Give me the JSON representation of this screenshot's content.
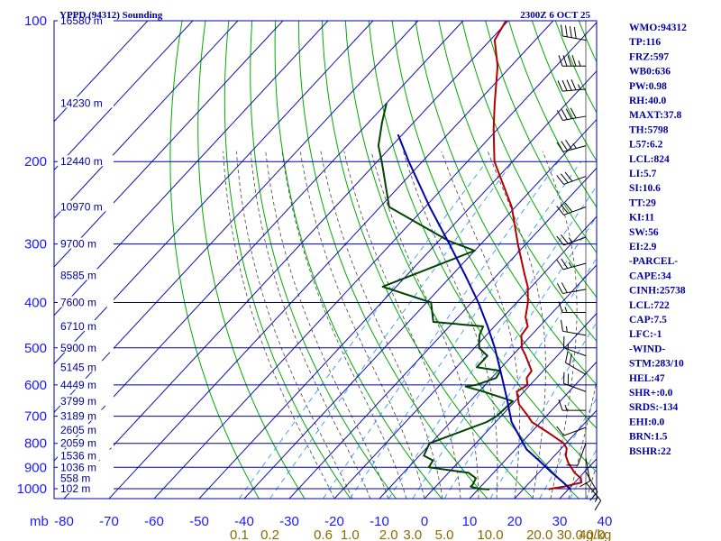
{
  "chart_data": {
    "type": "line",
    "title": "YPPD (94312) Sounding",
    "time_label": "2300Z  6 OCT 25",
    "pressure_axis_unit": "mb",
    "mixing_ratio_unit": "g/kg",
    "pressure_levels": [
      100,
      200,
      300,
      400,
      500,
      600,
      700,
      800,
      900,
      1000
    ],
    "temperature_ticks": [
      -80,
      -70,
      -60,
      -50,
      -40,
      -30,
      -20,
      -10,
      0,
      10,
      20,
      30,
      40
    ],
    "temperature_tick_labels": [
      "-80",
      "-70",
      "-60",
      "-50",
      "-40",
      "-30",
      "-20",
      "-10",
      "0",
      "10",
      "20",
      "30",
      "40"
    ],
    "mixing_ratio_labels": [
      "0.1",
      "0.2",
      "0.6",
      "1.0",
      "2.0",
      "3.0",
      "5.0",
      "10.0",
      "20.0",
      "30.0",
      "40.0"
    ],
    "height_labels": [
      {
        "p": 100,
        "label": "16580 m"
      },
      {
        "p": 150,
        "label": "14230 m"
      },
      {
        "p": 200,
        "label": "12440 m"
      },
      {
        "p": 250,
        "label": "10970 m"
      },
      {
        "p": 300,
        "label": "9700 m"
      },
      {
        "p": 350,
        "label": "8585 m"
      },
      {
        "p": 400,
        "label": "7600 m"
      },
      {
        "p": 450,
        "label": "6710 m"
      },
      {
        "p": 500,
        "label": "5900 m"
      },
      {
        "p": 550,
        "label": "5145 m"
      },
      {
        "p": 600,
        "label": "4449 m"
      },
      {
        "p": 650,
        "label": "3799 m"
      },
      {
        "p": 700,
        "label": "3189 m"
      },
      {
        "p": 750,
        "label": "2605 m"
      },
      {
        "p": 800,
        "label": "2059 m"
      },
      {
        "p": 850,
        "label": "1536 m"
      },
      {
        "p": 900,
        "label": "1036 m"
      },
      {
        "p": 950,
        "label": "558 m"
      },
      {
        "p": 1000,
        "label": "102 m"
      }
    ],
    "series": [
      {
        "name": "Temperature",
        "color": "#b00000",
        "points": [
          {
            "p": 1003,
            "t": 25.6
          },
          {
            "p": 1000,
            "t": 26.0
          },
          {
            "p": 990,
            "t": 28.5
          },
          {
            "p": 970,
            "t": 31.5
          },
          {
            "p": 950,
            "t": 30.5
          },
          {
            "p": 925,
            "t": 28.0
          },
          {
            "p": 880,
            "t": 24.5
          },
          {
            "p": 850,
            "t": 22.5
          },
          {
            "p": 820,
            "t": 21.2
          },
          {
            "p": 800,
            "t": 19.5
          },
          {
            "p": 760,
            "t": 14.0
          },
          {
            "p": 720,
            "t": 8.0
          },
          {
            "p": 700,
            "t": 6.0
          },
          {
            "p": 660,
            "t": 1.5
          },
          {
            "p": 620,
            "t": -1.6
          },
          {
            "p": 600,
            "t": -0.6
          },
          {
            "p": 580,
            "t": -2.2
          },
          {
            "p": 560,
            "t": -2.6
          },
          {
            "p": 520,
            "t": -7.0
          },
          {
            "p": 500,
            "t": -9.5
          },
          {
            "p": 470,
            "t": -12.2
          },
          {
            "p": 450,
            "t": -12.6
          },
          {
            "p": 430,
            "t": -15.0
          },
          {
            "p": 400,
            "t": -17.5
          },
          {
            "p": 370,
            "t": -20.8
          },
          {
            "p": 350,
            "t": -23.8
          },
          {
            "p": 300,
            "t": -31.8
          },
          {
            "p": 250,
            "t": -40.8
          },
          {
            "p": 200,
            "t": -54.0
          },
          {
            "p": 170,
            "t": -61.0
          },
          {
            "p": 150,
            "t": -66.0
          },
          {
            "p": 125,
            "t": -73.0
          },
          {
            "p": 110,
            "t": -79.0
          },
          {
            "p": 100,
            "t": -80.5
          }
        ]
      },
      {
        "name": "Dewpoint",
        "color": "#004400",
        "points": [
          {
            "p": 1003,
            "t": 12.5
          },
          {
            "p": 1000,
            "t": 10.0
          },
          {
            "p": 990,
            "t": 7.8
          },
          {
            "p": 980,
            "t": 7.8
          },
          {
            "p": 950,
            "t": 7.2
          },
          {
            "p": 925,
            "t": 4.5
          },
          {
            "p": 900,
            "t": -5.5
          },
          {
            "p": 870,
            "t": -6.0
          },
          {
            "p": 850,
            "t": -9.0
          },
          {
            "p": 800,
            "t": -10.3
          },
          {
            "p": 720,
            "t": -2.0
          },
          {
            "p": 700,
            "t": -1.0
          },
          {
            "p": 650,
            "t": -0.5
          },
          {
            "p": 620,
            "t": -9.0
          },
          {
            "p": 605,
            "t": -14.0
          },
          {
            "p": 600,
            "t": -12.0
          },
          {
            "p": 580,
            "t": -9.0
          },
          {
            "p": 560,
            "t": -9.5
          },
          {
            "p": 550,
            "t": -15.5
          },
          {
            "p": 520,
            "t": -15.5
          },
          {
            "p": 500,
            "t": -19.0
          },
          {
            "p": 470,
            "t": -21.5
          },
          {
            "p": 450,
            "t": -22.5
          },
          {
            "p": 440,
            "t": -34.5
          },
          {
            "p": 400,
            "t": -39.0
          },
          {
            "p": 370,
            "t": -53.0
          },
          {
            "p": 310,
            "t": -40.0
          },
          {
            "p": 295,
            "t": -48.0
          },
          {
            "p": 250,
            "t": -68.0
          },
          {
            "p": 200,
            "t": -79.0
          },
          {
            "p": 185,
            "t": -83.0
          },
          {
            "p": 165,
            "t": -87.0
          },
          {
            "p": 150,
            "t": -90.0
          }
        ]
      },
      {
        "name": "Parcel",
        "color": "#0000b0",
        "points": [
          {
            "p": 1003,
            "t": 30.5
          },
          {
            "p": 970,
            "t": 27.5
          },
          {
            "p": 920,
            "t": 22.5
          },
          {
            "p": 870,
            "t": 17.5
          },
          {
            "p": 824,
            "t": 12.5
          },
          {
            "p": 720,
            "t": 3.5
          },
          {
            "p": 640,
            "t": -2.5
          },
          {
            "p": 560,
            "t": -9.5
          },
          {
            "p": 500,
            "t": -15.5
          },
          {
            "p": 450,
            "t": -21.5
          },
          {
            "p": 400,
            "t": -28.5
          },
          {
            "p": 350,
            "t": -37.0
          },
          {
            "p": 300,
            "t": -47.0
          },
          {
            "p": 250,
            "t": -59.0
          },
          {
            "p": 200,
            "t": -73.0
          },
          {
            "p": 175,
            "t": -81.0
          }
        ]
      }
    ],
    "wind_barbs": [
      {
        "p": 110,
        "dir": 280,
        "spd": 40
      },
      {
        "p": 125,
        "dir": 270,
        "spd": 45
      },
      {
        "p": 140,
        "dir": 265,
        "spd": 45
      },
      {
        "p": 160,
        "dir": 260,
        "spd": 40
      },
      {
        "p": 185,
        "dir": 255,
        "spd": 35
      },
      {
        "p": 215,
        "dir": 250,
        "spd": 30
      },
      {
        "p": 250,
        "dir": 250,
        "spd": 30
      },
      {
        "p": 290,
        "dir": 250,
        "spd": 25
      },
      {
        "p": 330,
        "dir": 255,
        "spd": 25
      },
      {
        "p": 375,
        "dir": 260,
        "spd": 20
      },
      {
        "p": 420,
        "dir": 270,
        "spd": 15
      },
      {
        "p": 470,
        "dir": 280,
        "spd": 15
      },
      {
        "p": 520,
        "dir": 290,
        "spd": 15
      },
      {
        "p": 570,
        "dir": 300,
        "spd": 20
      },
      {
        "p": 620,
        "dir": 290,
        "spd": 20
      },
      {
        "p": 680,
        "dir": 270,
        "spd": 15
      },
      {
        "p": 740,
        "dir": 250,
        "spd": 10
      },
      {
        "p": 800,
        "dir": 200,
        "spd": 10
      },
      {
        "p": 860,
        "dir": 170,
        "spd": 10
      },
      {
        "p": 920,
        "dir": 150,
        "spd": 15
      },
      {
        "p": 970,
        "dir": 140,
        "spd": 15
      }
    ],
    "indices": [
      "WMO:94312",
      "TP:116",
      "FRZ:597",
      "WB0:636",
      "PW:0.98",
      "RH:40.0",
      "MAXT:37.8",
      "TH:5798",
      "L57:6.2",
      "LCL:824",
      "LI:5.7",
      "SI:10.6",
      "TT:29",
      "KI:11",
      "SW:56",
      "EI:2.9",
      "-PARCEL-",
      "CAPE:34",
      "CINH:25738",
      "LCL:722",
      "CAP:7.5",
      "LFC:-1",
      "-WIND-",
      "STM:283/10",
      "HEL:47",
      "SHR+:0.0",
      "SRDS:-134",
      "EHI:0.0",
      "BRN:1.5",
      "BSHR:22"
    ],
    "colors": {
      "isobar": "#0000aa",
      "isotherm": "#1010aa",
      "dry_adiabat": "#00aa00",
      "moist_adiabat": "#444444",
      "mixing_ratio": "#3399ff"
    }
  }
}
